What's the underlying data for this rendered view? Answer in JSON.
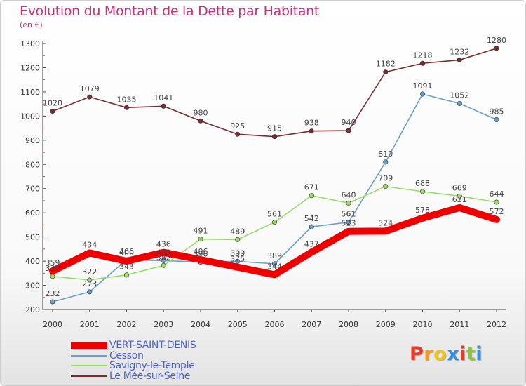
{
  "chart_data": {
    "type": "line",
    "title": "Evolution du Montant de la Dette par Habitant",
    "unit_label": "(en €)",
    "xlabel": "",
    "ylabel": "",
    "ylim": [
      200,
      1300
    ],
    "yticks": [
      200,
      300,
      400,
      500,
      600,
      700,
      800,
      900,
      1000,
      1100,
      1200,
      1300
    ],
    "grid": false,
    "legend_position": "bottom-left",
    "categories": [
      "2000",
      "2001",
      "2002",
      "2003",
      "2004",
      "2005",
      "2006",
      "2007",
      "2008",
      "2009",
      "2010",
      "2011",
      "2012"
    ],
    "series": [
      {
        "name": "Le Mée-sur-Seine",
        "color": "#7a2b30",
        "values": [
          1020,
          1079,
          1035,
          1041,
          980,
          925,
          915,
          938,
          940,
          1182,
          1218,
          1232,
          1280
        ]
      },
      {
        "name": "Cesson",
        "color": "#6b9fce",
        "values": [
          232,
          273,
          406,
          402,
          396,
          399,
          389,
          542,
          561,
          810,
          1091,
          1052,
          985
        ]
      },
      {
        "name": "Savigny-le-Temple",
        "color": "#99dd66",
        "values": [
          337,
          322,
          343,
          382,
          491,
          489,
          561,
          671,
          640,
          709,
          688,
          669,
          644
        ]
      },
      {
        "name": "VERT-SAINT-DENIS",
        "color": "#ee0000",
        "values": [
          359,
          434,
          400,
          436,
          406,
          375,
          344,
          437,
          523,
          524,
          578,
          621,
          572
        ]
      }
    ]
  },
  "legend": [
    {
      "name": "VERT-SAINT-DENIS",
      "color": "#ee0000"
    },
    {
      "name": "Cesson",
      "color": "#6b9fce"
    },
    {
      "name": "Savigny-le-Temple",
      "color": "#99dd66"
    },
    {
      "name": "Le Mée-sur-Seine",
      "color": "#7a2b30"
    }
  ],
  "logo": {
    "text": "Proxiti",
    "letters": [
      "P",
      "r",
      "o",
      "x",
      "i",
      "t",
      "i"
    ],
    "colors": [
      "#e63a2b",
      "#f29a1e",
      "#f2c21e",
      "#3a8fd6",
      "#e63a2b",
      "#8bc43f",
      "#3a8fd6"
    ]
  }
}
